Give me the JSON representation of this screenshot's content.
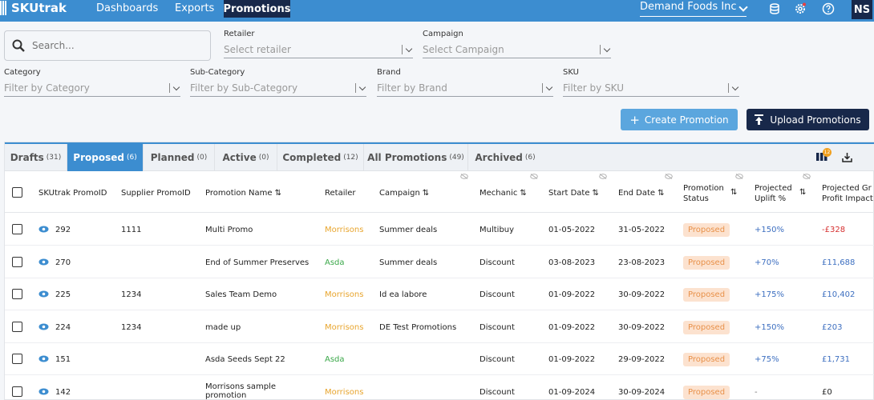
{
  "app": {
    "name": "SKUtrak"
  },
  "nav": {
    "items": [
      "Dashboards",
      "Exports"
    ],
    "active": "Promotions"
  },
  "org": {
    "name": "Demand Foods Inc"
  },
  "user": {
    "initials": "NS"
  },
  "search": {
    "placeholder": "Search..."
  },
  "filters": {
    "retailer": {
      "label": "Retailer",
      "placeholder": "Select retailer"
    },
    "campaign": {
      "label": "Campaign",
      "placeholder": "Select Campaign"
    },
    "category": {
      "label": "Category",
      "placeholder": "Filter by Category"
    },
    "subcategory": {
      "label": "Sub-Category",
      "placeholder": "Filter by Sub-Category"
    },
    "brand": {
      "label": "Brand",
      "placeholder": "Filter by Brand"
    },
    "sku": {
      "label": "SKU",
      "placeholder": "Filter by SKU"
    }
  },
  "actions": {
    "create": "Create Promotion",
    "upload": "Upload Promotions"
  },
  "tabs": [
    {
      "label": "Drafts",
      "count": "(31)"
    },
    {
      "label": "Proposed",
      "count": "(6)",
      "active": true
    },
    {
      "label": "Planned",
      "count": "(0)"
    },
    {
      "label": "Active",
      "count": "(0)"
    },
    {
      "label": "Completed",
      "count": "(12)"
    },
    {
      "label": "All Promotions",
      "count": "(49)"
    },
    {
      "label": "Archived",
      "count": "(6)"
    }
  ],
  "columns_badge": "12",
  "columns": {
    "skutrak_id": "SKUtrak PromoID",
    "supplier_id": "Supplier PromoID",
    "name": "Promotion Name",
    "retailer": "Retailer",
    "campaign": "Campaign",
    "mechanic": "Mechanic",
    "start": "Start Date",
    "end": "End Date",
    "status_l1": "Promotion",
    "status_l2": "Status",
    "uplift_l1": "Projected",
    "uplift_l2": "Uplift %",
    "gp_l1": "Projected Gr",
    "gp_l2": "Profit Impact"
  },
  "rows": [
    {
      "id": "292",
      "supplier_id": "1111",
      "name": "Multi Promo",
      "retailer": "Morrisons",
      "campaign": "Summer deals",
      "mechanic": "Multibuy",
      "start": "01-05-2022",
      "end": "31-05-2022",
      "status": "Proposed",
      "uplift": "+150%",
      "gp": "-£328"
    },
    {
      "id": "270",
      "supplier_id": "",
      "name": "End of Summer Preserves",
      "retailer": "Asda",
      "campaign": "Summer deals",
      "mechanic": "Discount",
      "start": "03-08-2023",
      "end": "23-08-2023",
      "status": "Proposed",
      "uplift": "+70%",
      "gp": "£11,688"
    },
    {
      "id": "225",
      "supplier_id": "1234",
      "name": "Sales Team Demo",
      "retailer": "Morrisons",
      "campaign": "Id ea labore",
      "mechanic": "Discount",
      "start": "01-09-2022",
      "end": "30-09-2022",
      "status": "Proposed",
      "uplift": "+175%",
      "gp": "£10,402"
    },
    {
      "id": "224",
      "supplier_id": "1234",
      "name": "made up",
      "retailer": "Morrisons",
      "campaign": "DE Test Promotions",
      "mechanic": "Discount",
      "start": "01-09-2022",
      "end": "30-09-2022",
      "status": "Proposed",
      "uplift": "+150%",
      "gp": "£203"
    },
    {
      "id": "151",
      "supplier_id": "",
      "name": "Asda Seeds Sept 22",
      "retailer": "Asda",
      "campaign": "",
      "mechanic": "Discount",
      "start": "01-09-2022",
      "end": "29-09-2022",
      "status": "Proposed",
      "uplift": "+75%",
      "gp": "£1,731"
    },
    {
      "id": "142",
      "supplier_id": "",
      "name": "Morrisons sample promotion",
      "retailer": "Morrisons",
      "campaign": "",
      "mechanic": "Discount",
      "start": "01-09-2024",
      "end": "30-09-2024",
      "status": "Proposed",
      "uplift": "-",
      "gp": "£0"
    }
  ]
}
